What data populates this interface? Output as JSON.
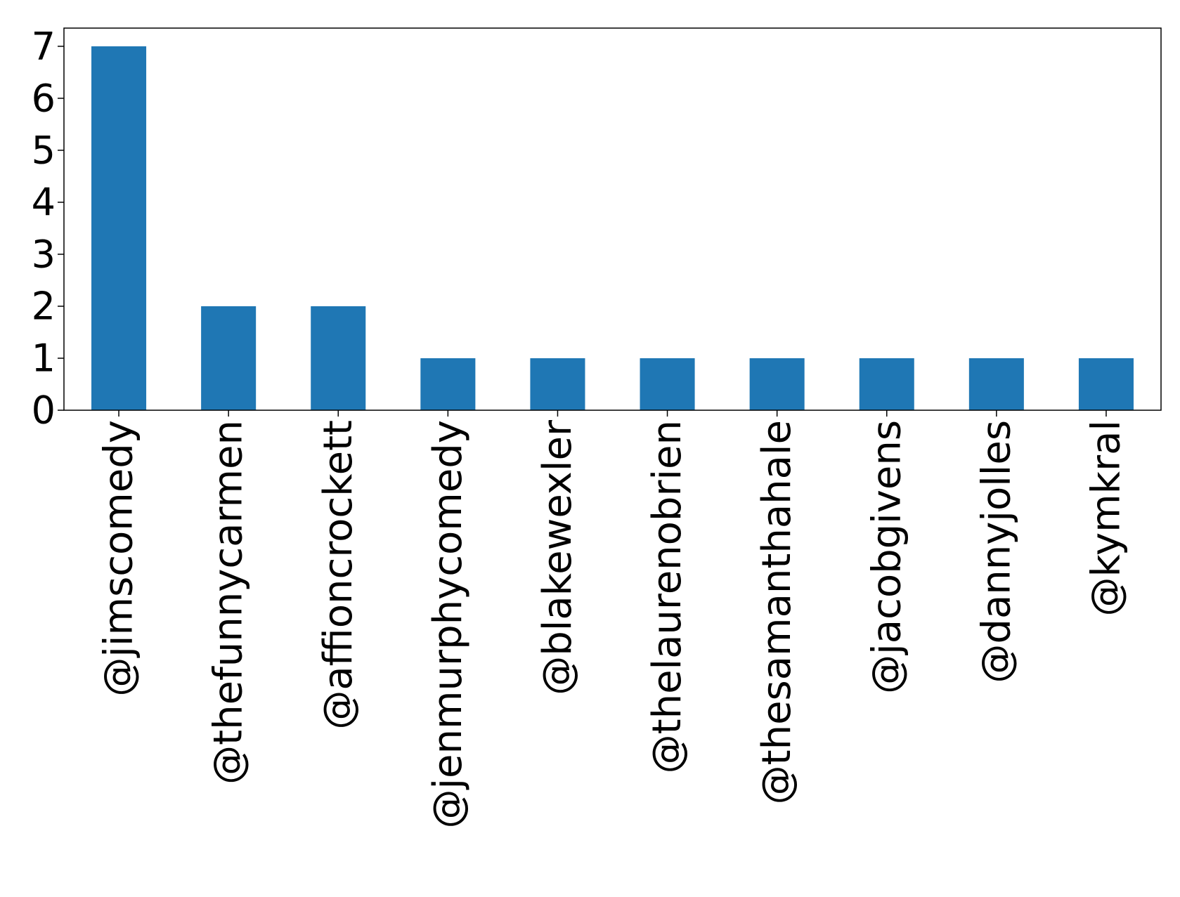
{
  "chart_data": {
    "type": "bar",
    "title": "",
    "xlabel": "",
    "ylabel": "",
    "categories": [
      "@jimscomedy",
      "@thefunnycarmen",
      "@affioncrockett",
      "@jenmurphycomedy",
      "@blakewexler",
      "@thelaurenobrien",
      "@thesamanthahale",
      "@jacobgivens",
      "@dannyjolles",
      "@kymkral"
    ],
    "values": [
      7,
      2,
      2,
      1,
      1,
      1,
      1,
      1,
      1,
      1
    ],
    "ylim": [
      0,
      7.35
    ],
    "yticks": [
      0,
      1,
      2,
      3,
      4,
      5,
      6,
      7
    ],
    "grid": false,
    "legend": "none",
    "colors": {
      "bar": "#1f77b4",
      "axis": "#000000",
      "background": "#ffffff"
    }
  }
}
